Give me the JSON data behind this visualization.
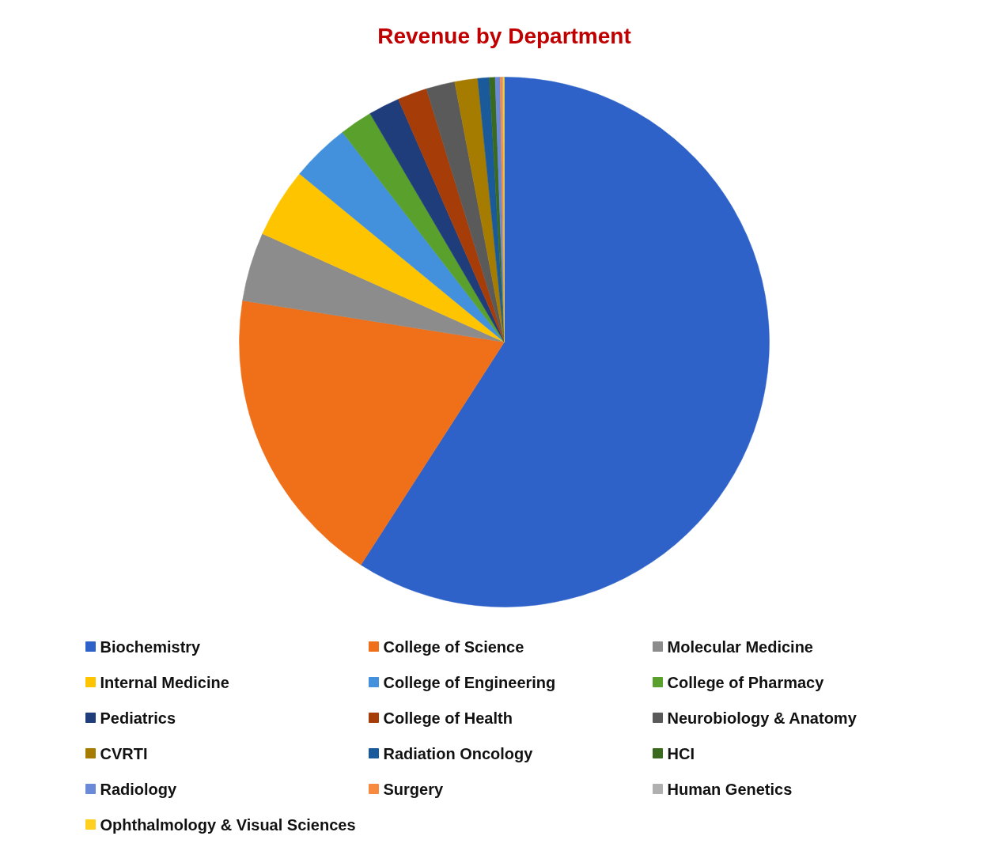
{
  "chart_data": {
    "type": "pie",
    "title": "Revenue by Department",
    "categories": [
      "Biochemistry",
      "College of Science",
      "Molecular Medicine",
      "Internal Medicine",
      "College of Engineering",
      "College of Pharmacy",
      "Pediatrics",
      "College of Health",
      "Neurobiology & Anatomy",
      "CVRTI",
      "Radiation Oncology",
      "HCI",
      "Radiology",
      "Surgery",
      "Human Genetics",
      "Ophthalmology & Visual Sciences"
    ],
    "values": [
      59.1,
      18.4,
      4.2,
      4.25,
      3.6,
      2.0,
      1.9,
      1.8,
      1.75,
      1.4,
      0.7,
      0.35,
      0.3,
      0.15,
      0.05,
      0.05
    ],
    "colors": [
      "#2e62c8",
      "#f0701a",
      "#8c8c8c",
      "#ffc400",
      "#4390dd",
      "#5aa02c",
      "#1f3d7a",
      "#a63c08",
      "#5a5a5a",
      "#a67c00",
      "#1a5a9a",
      "#3a6a20",
      "#6a8ad8",
      "#f88a40",
      "#b0b0b0",
      "#ffd020"
    ],
    "legend": "bottom"
  }
}
